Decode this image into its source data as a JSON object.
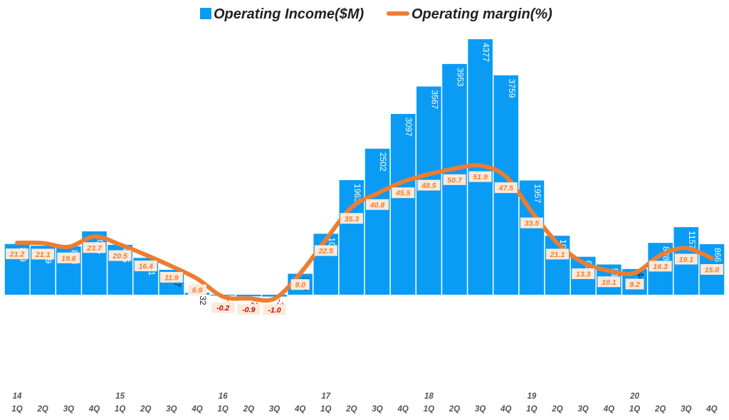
{
  "chart_data": {
    "type": "bar+line",
    "legend": {
      "bar_label": "Operating Income($M)",
      "line_label": "Operating margin(%)",
      "placement": "top-center"
    },
    "years": [
      "14",
      "15",
      "16",
      "17",
      "18",
      "19",
      "20"
    ],
    "quarters": [
      "1Q",
      "2Q",
      "3Q",
      "4Q"
    ],
    "categories": [
      "14 1Q",
      "14 2Q",
      "14 3Q",
      "14 4Q",
      "15 1Q",
      "15 2Q",
      "15 3Q",
      "15 4Q",
      "16 1Q",
      "16 2Q",
      "16 3Q",
      "16 4Q",
      "17 1Q",
      "17 2Q",
      "17 3Q",
      "17 4Q",
      "18 1Q",
      "18 2Q",
      "18 3Q",
      "18 4Q",
      "19 1Q",
      "19 2Q",
      "19 3Q",
      "19 4Q",
      "20 1Q",
      "20 2Q",
      "20 3Q",
      "20 4Q"
    ],
    "series": [
      {
        "name": "Operating Income($M)",
        "type": "bar",
        "values": [
          869,
          839,
          828,
          1085,
          855,
          631,
          427,
          32,
          -5,
          -27,
          -32,
          359,
          1044,
          1963,
          2502,
          3097,
          3567,
          3953,
          4377,
          3759,
          1957,
          1010,
          650,
          518,
          440,
          888,
          1157,
          866
        ]
      },
      {
        "name": "Operating margin(%)",
        "type": "line",
        "values": [
          21.2,
          21.1,
          19.6,
          23.7,
          20.5,
          16.4,
          11.9,
          6.9,
          -0.2,
          -0.9,
          -1.0,
          9.0,
          22.5,
          35.3,
          40.8,
          45.5,
          48.5,
          50.7,
          51.9,
          47.5,
          33.5,
          21.1,
          13.3,
          10.1,
          9.2,
          16.3,
          19.1,
          15.0
        ],
        "labels": [
          "21.2",
          "21.1",
          "19.6",
          "23.7",
          "20.5",
          "16.4",
          "11.9",
          "6.9",
          "-0.2",
          "-0.9",
          "-1.0",
          "9.0",
          "22.5",
          "35.3",
          "40.8",
          "45.5",
          "48.5",
          "50.7",
          "51.9",
          "47.5",
          "33.5",
          "21.1",
          "13.3",
          "10.1",
          "9.2",
          "16.3",
          "19.1",
          "15.0"
        ]
      }
    ],
    "bar_ylim": [
      -1500,
      4500
    ],
    "line_ylim": [
      -28,
      105
    ],
    "grid": false,
    "title": "",
    "xlabel": "",
    "ylabel": ""
  },
  "colors": {
    "bar": "#0a9cf5",
    "line": "#ed7d31",
    "label_box": "#fde9d9",
    "label_text": "#ed7d31",
    "label_neg_text": "#cc0000",
    "tick_text": "#555555"
  }
}
